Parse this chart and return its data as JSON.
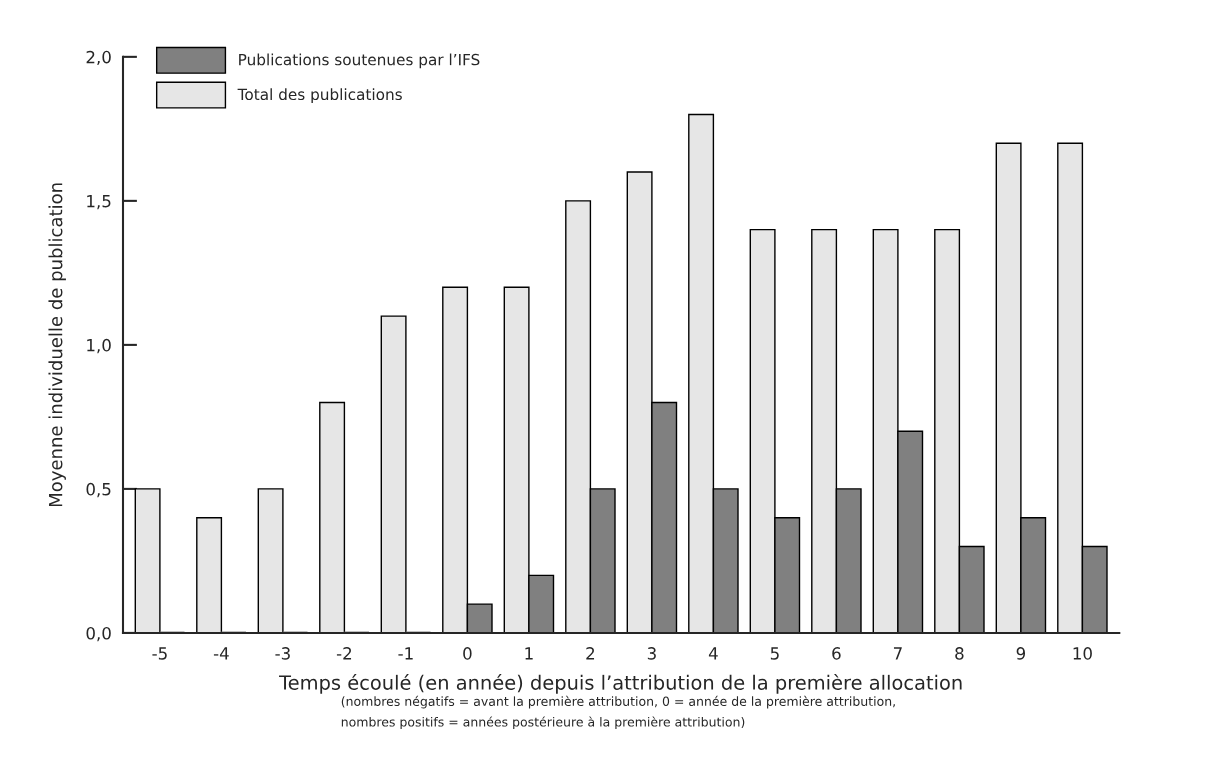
{
  "chart_data": {
    "type": "bar",
    "xlabel": "Temps écoulé (en année) depuis l’attribution de la première allocation",
    "ylabel": "Moyenne individuelle de publication",
    "categories": [
      "-5",
      "-4",
      "-3",
      "-2",
      "-1",
      "0",
      "1",
      "2",
      "3",
      "4",
      "5",
      "6",
      "7",
      "8",
      "9",
      "10"
    ],
    "series": [
      {
        "name": "Total des publications",
        "color": "#e6e6e6",
        "values": [
          0.5,
          0.4,
          0.5,
          0.8,
          1.1,
          1.2,
          1.2,
          1.5,
          1.6,
          1.8,
          1.4,
          1.4,
          1.4,
          1.4,
          1.7,
          1.7
        ]
      },
      {
        "name": "Publications soutenues par l’IFS",
        "color": "#808080",
        "values": [
          0,
          0,
          0,
          0,
          0,
          0.1,
          0.2,
          0.5,
          0.8,
          0.5,
          0.4,
          0.5,
          0.7,
          0.3,
          0.4,
          0.3
        ]
      }
    ],
    "ylim": [
      0,
      2.0
    ],
    "yticks": [
      {
        "value": 0,
        "label": "0,0"
      },
      {
        "value": 0.5,
        "label": "0,5"
      },
      {
        "value": 1.0,
        "label": "1,0"
      },
      {
        "value": 1.5,
        "label": "1,5"
      },
      {
        "value": 2.0,
        "label": "2,0"
      }
    ],
    "grid": false,
    "legend": "top left",
    "annotations": [
      "(nombres négatifs = avant la première attribution, 0 = année de la première attribution,\nnombres positifs = années postérieure à la première attribution)"
    ]
  }
}
